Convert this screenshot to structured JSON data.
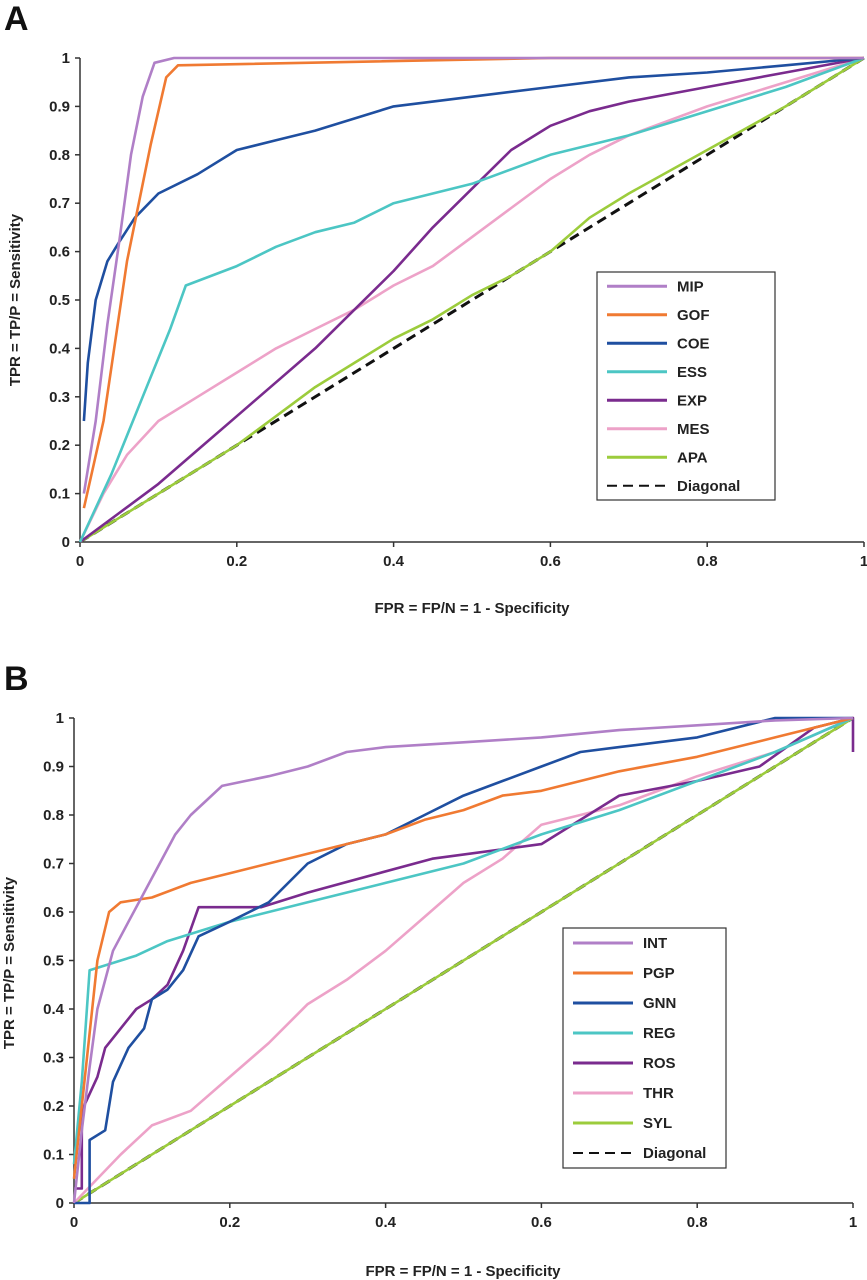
{
  "chart_data": [
    {
      "panel": "A",
      "type": "line",
      "xlabel": "FPR = FP/N = 1 - Specificity",
      "ylabel": "TPR = TP/P = Sensitivity",
      "xlim": [
        0,
        1
      ],
      "ylim": [
        0,
        1
      ],
      "xticks": [
        "0",
        "0.2",
        "0.4",
        "0.6",
        "0.8",
        "1"
      ],
      "yticks": [
        "0",
        "0.1",
        "0.2",
        "0.3",
        "0.4",
        "0.5",
        "0.6",
        "0.7",
        "0.8",
        "0.9",
        "1"
      ],
      "legend_position": "right",
      "series": [
        {
          "name": "MIP",
          "color": "#b07fc7",
          "points": [
            [
              0.005,
              0.1
            ],
            [
              0.02,
              0.25
            ],
            [
              0.035,
              0.45
            ],
            [
              0.05,
              0.62
            ],
            [
              0.065,
              0.8
            ],
            [
              0.08,
              0.92
            ],
            [
              0.095,
              0.99
            ],
            [
              0.12,
              1.0
            ],
            [
              1.0,
              1.0
            ]
          ]
        },
        {
          "name": "GOF",
          "color": "#f07a32",
          "points": [
            [
              0.005,
              0.07
            ],
            [
              0.03,
              0.25
            ],
            [
              0.06,
              0.58
            ],
            [
              0.09,
              0.82
            ],
            [
              0.11,
              0.96
            ],
            [
              0.125,
              0.985
            ],
            [
              0.6,
              1.0
            ],
            [
              1.0,
              1.0
            ]
          ]
        },
        {
          "name": "COE",
          "color": "#1f4fa0",
          "points": [
            [
              0.005,
              0.25
            ],
            [
              0.01,
              0.37
            ],
            [
              0.02,
              0.5
            ],
            [
              0.035,
              0.58
            ],
            [
              0.05,
              0.62
            ],
            [
              0.07,
              0.67
            ],
            [
              0.1,
              0.72
            ],
            [
              0.15,
              0.76
            ],
            [
              0.2,
              0.81
            ],
            [
              0.25,
              0.83
            ],
            [
              0.3,
              0.85
            ],
            [
              0.4,
              0.9
            ],
            [
              0.5,
              0.92
            ],
            [
              0.6,
              0.94
            ],
            [
              0.7,
              0.96
            ],
            [
              0.8,
              0.97
            ],
            [
              0.9,
              0.985
            ],
            [
              1.0,
              1.0
            ]
          ]
        },
        {
          "name": "ESS",
          "color": "#4cc6c4",
          "points": [
            [
              0.0,
              0.0
            ],
            [
              0.04,
              0.14
            ],
            [
              0.08,
              0.3
            ],
            [
              0.115,
              0.44
            ],
            [
              0.135,
              0.53
            ],
            [
              0.2,
              0.57
            ],
            [
              0.25,
              0.61
            ],
            [
              0.3,
              0.64
            ],
            [
              0.35,
              0.66
            ],
            [
              0.4,
              0.7
            ],
            [
              0.45,
              0.72
            ],
            [
              0.5,
              0.74
            ],
            [
              0.6,
              0.8
            ],
            [
              0.7,
              0.84
            ],
            [
              0.8,
              0.89
            ],
            [
              0.9,
              0.94
            ],
            [
              1.0,
              1.0
            ]
          ]
        },
        {
          "name": "EXP",
          "color": "#7a2b8e",
          "points": [
            [
              0.0,
              0.0
            ],
            [
              0.05,
              0.06
            ],
            [
              0.1,
              0.12
            ],
            [
              0.15,
              0.19
            ],
            [
              0.2,
              0.26
            ],
            [
              0.25,
              0.33
            ],
            [
              0.3,
              0.4
            ],
            [
              0.35,
              0.48
            ],
            [
              0.4,
              0.56
            ],
            [
              0.45,
              0.65
            ],
            [
              0.5,
              0.73
            ],
            [
              0.55,
              0.81
            ],
            [
              0.6,
              0.86
            ],
            [
              0.65,
              0.89
            ],
            [
              0.7,
              0.91
            ],
            [
              0.8,
              0.94
            ],
            [
              0.9,
              0.97
            ],
            [
              1.0,
              1.0
            ]
          ]
        },
        {
          "name": "MES",
          "color": "#eda2c8",
          "points": [
            [
              0.0,
              0.0
            ],
            [
              0.03,
              0.1
            ],
            [
              0.06,
              0.18
            ],
            [
              0.1,
              0.25
            ],
            [
              0.15,
              0.3
            ],
            [
              0.2,
              0.35
            ],
            [
              0.25,
              0.4
            ],
            [
              0.3,
              0.44
            ],
            [
              0.35,
              0.48
            ],
            [
              0.4,
              0.53
            ],
            [
              0.45,
              0.57
            ],
            [
              0.5,
              0.63
            ],
            [
              0.55,
              0.69
            ],
            [
              0.6,
              0.75
            ],
            [
              0.65,
              0.8
            ],
            [
              0.7,
              0.84
            ],
            [
              0.8,
              0.9
            ],
            [
              0.9,
              0.95
            ],
            [
              1.0,
              1.0
            ]
          ]
        },
        {
          "name": "APA",
          "color": "#9ccc3c",
          "points": [
            [
              0.0,
              0.0
            ],
            [
              0.05,
              0.05
            ],
            [
              0.1,
              0.1
            ],
            [
              0.15,
              0.15
            ],
            [
              0.2,
              0.2
            ],
            [
              0.25,
              0.26
            ],
            [
              0.3,
              0.32
            ],
            [
              0.35,
              0.37
            ],
            [
              0.4,
              0.42
            ],
            [
              0.45,
              0.46
            ],
            [
              0.5,
              0.51
            ],
            [
              0.55,
              0.55
            ],
            [
              0.6,
              0.6
            ],
            [
              0.65,
              0.67
            ],
            [
              0.7,
              0.72
            ],
            [
              0.8,
              0.81
            ],
            [
              0.9,
              0.9
            ],
            [
              1.0,
              1.0
            ]
          ]
        },
        {
          "name": "Diagonal",
          "color": "#111111",
          "dashed": true,
          "points": [
            [
              0.0,
              0.0
            ],
            [
              1.0,
              1.0
            ]
          ]
        }
      ]
    },
    {
      "panel": "B",
      "type": "line",
      "xlabel": "FPR = FP/N = 1 - Specificity",
      "ylabel": "TPR = TP/P = Sensitivity",
      "xlim": [
        0,
        1
      ],
      "ylim": [
        0,
        1
      ],
      "xticks": [
        "0",
        "0.2",
        "0.4",
        "0.6",
        "0.8",
        "1"
      ],
      "yticks": [
        "0",
        "0.1",
        "0.2",
        "0.3",
        "0.4",
        "0.5",
        "0.6",
        "0.7",
        "0.8",
        "0.9",
        "1"
      ],
      "legend_position": "right",
      "series": [
        {
          "name": "INT",
          "color": "#b07fc7",
          "points": [
            [
              0.0,
              0.0
            ],
            [
              0.01,
              0.15
            ],
            [
              0.02,
              0.28
            ],
            [
              0.03,
              0.4
            ],
            [
              0.05,
              0.52
            ],
            [
              0.07,
              0.58
            ],
            [
              0.09,
              0.64
            ],
            [
              0.11,
              0.7
            ],
            [
              0.13,
              0.76
            ],
            [
              0.15,
              0.8
            ],
            [
              0.17,
              0.83
            ],
            [
              0.19,
              0.86
            ],
            [
              0.22,
              0.87
            ],
            [
              0.25,
              0.88
            ],
            [
              0.3,
              0.9
            ],
            [
              0.35,
              0.93
            ],
            [
              0.4,
              0.94
            ],
            [
              0.5,
              0.95
            ],
            [
              0.6,
              0.96
            ],
            [
              0.7,
              0.975
            ],
            [
              0.8,
              0.985
            ],
            [
              0.9,
              0.995
            ],
            [
              1.0,
              1.0
            ]
          ]
        },
        {
          "name": "PGP",
          "color": "#f07a32",
          "points": [
            [
              0.0,
              0.05
            ],
            [
              0.01,
              0.2
            ],
            [
              0.02,
              0.35
            ],
            [
              0.03,
              0.5
            ],
            [
              0.045,
              0.6
            ],
            [
              0.06,
              0.62
            ],
            [
              0.1,
              0.63
            ],
            [
              0.15,
              0.66
            ],
            [
              0.2,
              0.68
            ],
            [
              0.3,
              0.72
            ],
            [
              0.4,
              0.76
            ],
            [
              0.45,
              0.79
            ],
            [
              0.5,
              0.81
            ],
            [
              0.55,
              0.84
            ],
            [
              0.6,
              0.85
            ],
            [
              0.7,
              0.89
            ],
            [
              0.8,
              0.92
            ],
            [
              0.9,
              0.96
            ],
            [
              1.0,
              1.0
            ]
          ]
        },
        {
          "name": "GNN",
          "color": "#1f4fa0",
          "points": [
            [
              0.0,
              0.0
            ],
            [
              0.02,
              0.0
            ],
            [
              0.02,
              0.13
            ],
            [
              0.04,
              0.15
            ],
            [
              0.05,
              0.25
            ],
            [
              0.07,
              0.32
            ],
            [
              0.09,
              0.36
            ],
            [
              0.1,
              0.42
            ],
            [
              0.12,
              0.44
            ],
            [
              0.14,
              0.48
            ],
            [
              0.16,
              0.55
            ],
            [
              0.2,
              0.58
            ],
            [
              0.25,
              0.62
            ],
            [
              0.3,
              0.7
            ],
            [
              0.35,
              0.74
            ],
            [
              0.4,
              0.76
            ],
            [
              0.45,
              0.8
            ],
            [
              0.5,
              0.84
            ],
            [
              0.55,
              0.87
            ],
            [
              0.6,
              0.9
            ],
            [
              0.65,
              0.93
            ],
            [
              0.7,
              0.94
            ],
            [
              0.8,
              0.96
            ],
            [
              0.9,
              1.0
            ],
            [
              1.0,
              1.0
            ]
          ]
        },
        {
          "name": "REG",
          "color": "#4cc6c4",
          "points": [
            [
              0.0,
              0.08
            ],
            [
              0.01,
              0.25
            ],
            [
              0.02,
              0.48
            ],
            [
              0.04,
              0.49
            ],
            [
              0.08,
              0.51
            ],
            [
              0.12,
              0.54
            ],
            [
              0.2,
              0.58
            ],
            [
              0.3,
              0.62
            ],
            [
              0.4,
              0.66
            ],
            [
              0.5,
              0.7
            ],
            [
              0.6,
              0.76
            ],
            [
              0.7,
              0.81
            ],
            [
              0.8,
              0.87
            ],
            [
              0.9,
              0.93
            ],
            [
              1.0,
              1.0
            ]
          ]
        },
        {
          "name": "ROS",
          "color": "#7a2b8e",
          "points": [
            [
              0.0,
              0.03
            ],
            [
              0.01,
              0.03
            ],
            [
              0.01,
              0.19
            ],
            [
              0.03,
              0.26
            ],
            [
              0.04,
              0.32
            ],
            [
              0.06,
              0.36
            ],
            [
              0.08,
              0.4
            ],
            [
              0.1,
              0.42
            ],
            [
              0.12,
              0.45
            ],
            [
              0.14,
              0.52
            ],
            [
              0.16,
              0.61
            ],
            [
              0.24,
              0.61
            ],
            [
              0.3,
              0.64
            ],
            [
              0.46,
              0.71
            ],
            [
              0.6,
              0.74
            ],
            [
              0.7,
              0.84
            ],
            [
              0.8,
              0.87
            ],
            [
              0.88,
              0.9
            ],
            [
              0.95,
              0.98
            ],
            [
              1.0,
              1.0
            ],
            [
              1.0,
              0.93
            ]
          ]
        },
        {
          "name": "THR",
          "color": "#eda2c8",
          "points": [
            [
              0.0,
              0.0
            ],
            [
              0.06,
              0.1
            ],
            [
              0.1,
              0.16
            ],
            [
              0.15,
              0.19
            ],
            [
              0.2,
              0.26
            ],
            [
              0.25,
              0.33
            ],
            [
              0.3,
              0.41
            ],
            [
              0.35,
              0.46
            ],
            [
              0.4,
              0.52
            ],
            [
              0.45,
              0.59
            ],
            [
              0.5,
              0.66
            ],
            [
              0.55,
              0.71
            ],
            [
              0.6,
              0.78
            ],
            [
              0.7,
              0.82
            ],
            [
              0.8,
              0.88
            ],
            [
              0.9,
              0.93
            ],
            [
              1.0,
              1.0
            ]
          ]
        },
        {
          "name": "SYL",
          "color": "#9ccc3c",
          "points": [
            [
              0.0,
              0.0
            ],
            [
              1.0,
              1.0
            ]
          ]
        },
        {
          "name": "Diagonal",
          "color": "#111111",
          "dashed": true,
          "points": [
            [
              0.0,
              0.0
            ],
            [
              1.0,
              1.0
            ]
          ]
        }
      ]
    }
  ]
}
